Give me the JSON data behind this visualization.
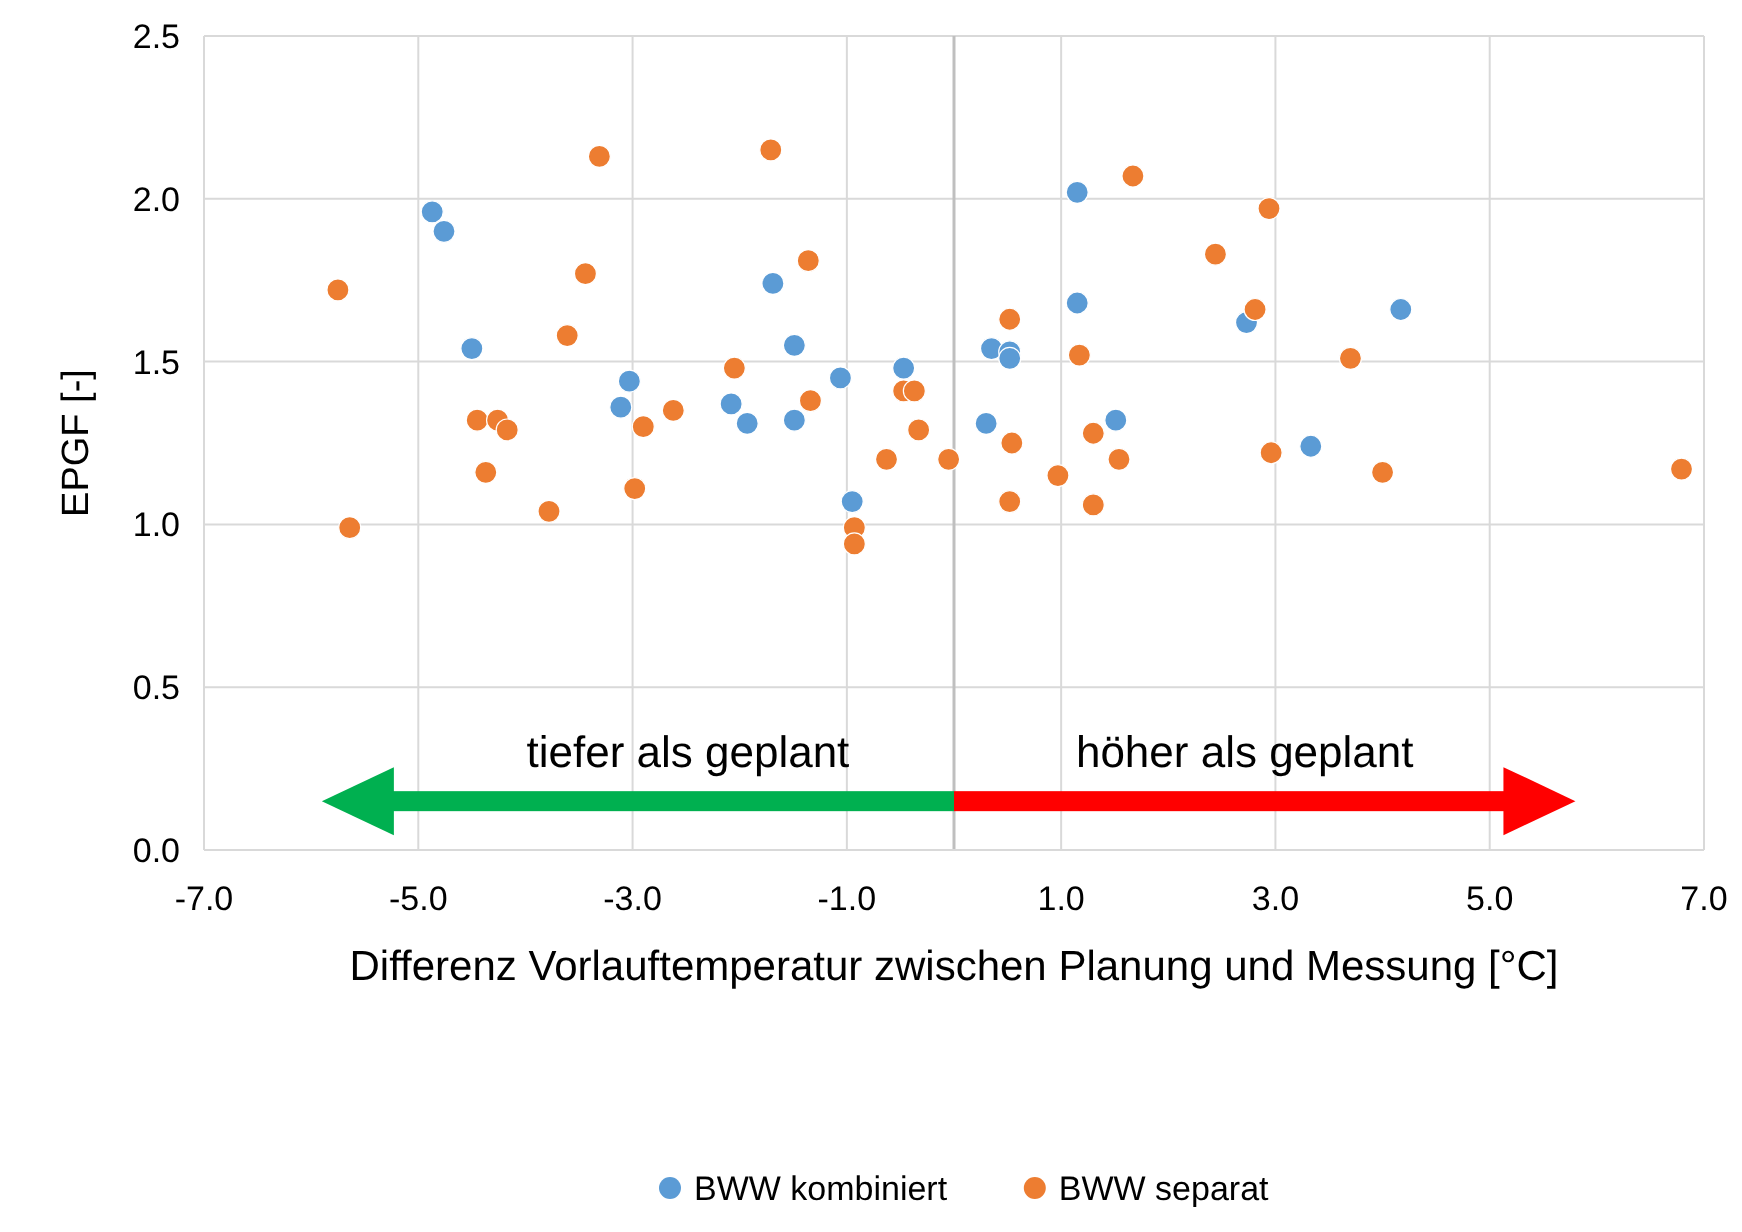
{
  "chart_data": {
    "type": "scatter",
    "xlabel": "Differenz Vorlauftemperatur zwischen Planung und Messung [°C]",
    "ylabel": "EPGF [-]",
    "xlim": [
      -7,
      7
    ],
    "xticks": [
      {
        "value": -7,
        "label": "-7.0"
      },
      {
        "value": -5,
        "label": "-5.0"
      },
      {
        "value": -3,
        "label": "-3.0"
      },
      {
        "value": -1,
        "label": "-1.0"
      },
      {
        "value": 1,
        "label": "1.0"
      },
      {
        "value": 3,
        "label": "3.0"
      },
      {
        "value": 5,
        "label": "5.0"
      },
      {
        "value": 7,
        "label": "7.0"
      }
    ],
    "ylim": [
      0,
      2.5
    ],
    "yticks": [
      {
        "value": 0,
        "label": "0.0"
      },
      {
        "value": 0.5,
        "label": "0.5"
      },
      {
        "value": 1,
        "label": "1.0"
      },
      {
        "value": 1.5,
        "label": "1.5"
      },
      {
        "value": 2,
        "label": "2.0"
      },
      {
        "value": 2.5,
        "label": "2.5"
      }
    ],
    "grid": true,
    "legend": "bottom",
    "marker": "circle",
    "ref_lines": [
      {
        "axis": "x",
        "value": 0,
        "color": "#bfbfbf"
      }
    ],
    "annotations": [
      "tiefer als geplant",
      "höher als geplant"
    ],
    "series": [
      {
        "name": "BWW kombiniert",
        "color": "#5b9bd5",
        "x": [
          -4.87,
          -4.76,
          -4.5,
          -3.03,
          -3.11,
          -1.69,
          -1.49,
          -1.49,
          -2.08,
          -1.93,
          -1.06,
          -0.47,
          -0.95,
          1.15,
          1.15,
          0.35,
          0.52,
          0.52,
          0.3,
          1.51,
          2.73,
          4.17,
          3.33
        ],
        "values": [
          1.96,
          1.9,
          1.54,
          1.44,
          1.36,
          1.74,
          1.55,
          1.32,
          1.37,
          1.31,
          1.45,
          1.48,
          1.07,
          2.02,
          1.68,
          1.54,
          1.53,
          1.51,
          1.31,
          1.32,
          1.62,
          1.66,
          1.24
        ]
      },
      {
        "name": "BWW separat",
        "color": "#ed7d31",
        "x": [
          -5.75,
          -5.64,
          -3.31,
          -1.71,
          -3.44,
          -1.36,
          -3.61,
          -4.45,
          -4.26,
          -4.17,
          -4.37,
          -3.78,
          -2.98,
          -2.9,
          -2.62,
          -2.05,
          -1.34,
          -0.93,
          -0.93,
          -0.63,
          -0.47,
          -0.37,
          -0.33,
          -0.05,
          1.67,
          2.94,
          2.44,
          2.81,
          0.52,
          1.17,
          3.7,
          0.54,
          1.3,
          1.54,
          0.97,
          0.52,
          1.3,
          2.96,
          4.0,
          6.79
        ],
        "values": [
          1.72,
          0.99,
          2.13,
          2.15,
          1.77,
          1.81,
          1.58,
          1.32,
          1.32,
          1.29,
          1.16,
          1.04,
          1.11,
          1.3,
          1.35,
          1.48,
          1.38,
          0.99,
          0.94,
          1.2,
          1.41,
          1.41,
          1.29,
          1.2,
          2.07,
          1.97,
          1.83,
          1.66,
          1.63,
          1.52,
          1.51,
          1.25,
          1.28,
          1.2,
          1.15,
          1.07,
          1.06,
          1.22,
          1.16,
          1.17
        ]
      }
    ]
  }
}
